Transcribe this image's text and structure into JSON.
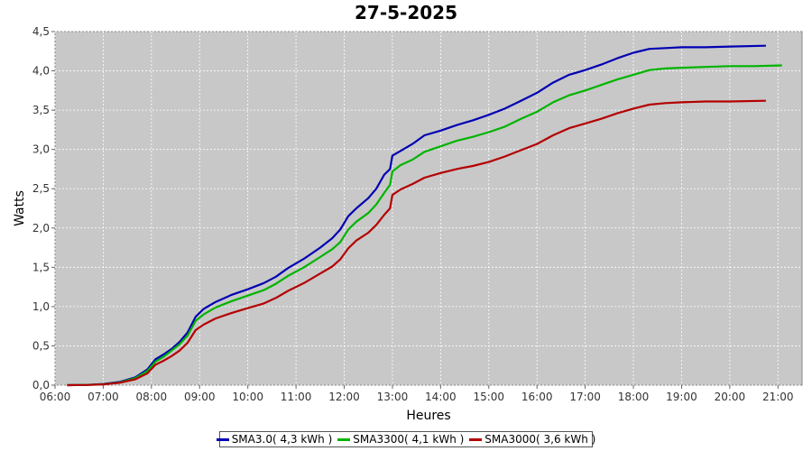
{
  "chart_data": {
    "type": "line",
    "title": "27-5-2025",
    "xlabel": "Heures",
    "ylabel": "Watts",
    "x_ticks": [
      "06:00",
      "07:00",
      "08:00",
      "09:00",
      "10:00",
      "11:00",
      "12:00",
      "13:00",
      "14:00",
      "15:00",
      "16:00",
      "17:00",
      "18:00",
      "19:00",
      "20:00",
      "21:00"
    ],
    "y_ticks": [
      "0,0",
      "0,5",
      "1,0",
      "1,5",
      "2,0",
      "2,5",
      "3,0",
      "3,5",
      "4,0",
      "4,5"
    ],
    "xlim": [
      "06:00",
      "21:30"
    ],
    "ylim": [
      0,
      4.5
    ],
    "grid": true,
    "background": "#c8c8c8",
    "legend_position": "bottom",
    "series": [
      {
        "name": "SMA3.0( 4,3 kWh )",
        "color": "#0000b4",
        "points": [
          [
            "06:15",
            0
          ],
          [
            "06:40",
            0.003
          ],
          [
            "07:00",
            0.015
          ],
          [
            "07:20",
            0.04
          ],
          [
            "07:40",
            0.1
          ],
          [
            "07:55",
            0.2
          ],
          [
            "08:05",
            0.33
          ],
          [
            "08:15",
            0.39
          ],
          [
            "08:25",
            0.46
          ],
          [
            "08:35",
            0.55
          ],
          [
            "08:45",
            0.67
          ],
          [
            "08:55",
            0.87
          ],
          [
            "09:05",
            0.97
          ],
          [
            "09:20",
            1.06
          ],
          [
            "09:40",
            1.15
          ],
          [
            "10:00",
            1.22
          ],
          [
            "10:20",
            1.3
          ],
          [
            "10:35",
            1.38
          ],
          [
            "10:50",
            1.49
          ],
          [
            "11:10",
            1.61
          ],
          [
            "11:30",
            1.75
          ],
          [
            "11:45",
            1.87
          ],
          [
            "11:55",
            1.98
          ],
          [
            "12:05",
            2.15
          ],
          [
            "12:15",
            2.25
          ],
          [
            "12:30",
            2.38
          ],
          [
            "12:40",
            2.5
          ],
          [
            "12:50",
            2.68
          ],
          [
            "12:57",
            2.75
          ],
          [
            "13:00",
            2.92
          ],
          [
            "13:10",
            2.98
          ],
          [
            "13:25",
            3.07
          ],
          [
            "13:40",
            3.18
          ],
          [
            "14:00",
            3.24
          ],
          [
            "14:20",
            3.31
          ],
          [
            "14:40",
            3.37
          ],
          [
            "15:00",
            3.44
          ],
          [
            "15:20",
            3.52
          ],
          [
            "15:40",
            3.62
          ],
          [
            "16:00",
            3.72
          ],
          [
            "16:20",
            3.85
          ],
          [
            "16:40",
            3.95
          ],
          [
            "17:00",
            4.01
          ],
          [
            "17:20",
            4.08
          ],
          [
            "17:40",
            4.16
          ],
          [
            "18:00",
            4.23
          ],
          [
            "18:20",
            4.28
          ],
          [
            "18:40",
            4.29
          ],
          [
            "19:00",
            4.3
          ],
          [
            "19:30",
            4.3
          ],
          [
            "20:00",
            4.31
          ],
          [
            "20:45",
            4.32
          ]
        ]
      },
      {
        "name": "SMA3300( 4,1 kWh )",
        "color": "#00b400",
        "points": [
          [
            "06:15",
            0
          ],
          [
            "06:40",
            0.003
          ],
          [
            "07:00",
            0.012
          ],
          [
            "07:20",
            0.035
          ],
          [
            "07:40",
            0.09
          ],
          [
            "07:55",
            0.18
          ],
          [
            "08:05",
            0.3
          ],
          [
            "08:15",
            0.36
          ],
          [
            "08:25",
            0.44
          ],
          [
            "08:35",
            0.52
          ],
          [
            "08:45",
            0.63
          ],
          [
            "08:55",
            0.82
          ],
          [
            "09:05",
            0.9
          ],
          [
            "09:20",
            0.99
          ],
          [
            "09:40",
            1.07
          ],
          [
            "10:00",
            1.14
          ],
          [
            "10:20",
            1.21
          ],
          [
            "10:35",
            1.29
          ],
          [
            "10:50",
            1.39
          ],
          [
            "11:10",
            1.5
          ],
          [
            "11:30",
            1.63
          ],
          [
            "11:45",
            1.73
          ],
          [
            "11:55",
            1.82
          ],
          [
            "12:05",
            1.98
          ],
          [
            "12:15",
            2.08
          ],
          [
            "12:30",
            2.19
          ],
          [
            "12:40",
            2.3
          ],
          [
            "12:50",
            2.45
          ],
          [
            "12:57",
            2.55
          ],
          [
            "13:00",
            2.72
          ],
          [
            "13:10",
            2.8
          ],
          [
            "13:25",
            2.87
          ],
          [
            "13:40",
            2.97
          ],
          [
            "14:00",
            3.04
          ],
          [
            "14:20",
            3.11
          ],
          [
            "14:40",
            3.16
          ],
          [
            "15:00",
            3.22
          ],
          [
            "15:20",
            3.29
          ],
          [
            "15:40",
            3.39
          ],
          [
            "16:00",
            3.48
          ],
          [
            "16:20",
            3.6
          ],
          [
            "16:40",
            3.69
          ],
          [
            "17:00",
            3.75
          ],
          [
            "17:20",
            3.82
          ],
          [
            "17:40",
            3.89
          ],
          [
            "18:00",
            3.95
          ],
          [
            "18:20",
            4.01
          ],
          [
            "18:40",
            4.03
          ],
          [
            "19:00",
            4.04
          ],
          [
            "19:30",
            4.05
          ],
          [
            "20:00",
            4.06
          ],
          [
            "20:30",
            4.06
          ],
          [
            "21:05",
            4.07
          ]
        ]
      },
      {
        "name": "SMA3000( 3,6 kWh )",
        "color": "#b40000",
        "points": [
          [
            "06:15",
            0
          ],
          [
            "06:40",
            0.002
          ],
          [
            "07:00",
            0.01
          ],
          [
            "07:20",
            0.03
          ],
          [
            "07:40",
            0.075
          ],
          [
            "07:55",
            0.15
          ],
          [
            "08:05",
            0.26
          ],
          [
            "08:15",
            0.31
          ],
          [
            "08:25",
            0.37
          ],
          [
            "08:35",
            0.44
          ],
          [
            "08:45",
            0.54
          ],
          [
            "08:55",
            0.7
          ],
          [
            "09:05",
            0.77
          ],
          [
            "09:20",
            0.85
          ],
          [
            "09:40",
            0.92
          ],
          [
            "10:00",
            0.98
          ],
          [
            "10:20",
            1.04
          ],
          [
            "10:35",
            1.11
          ],
          [
            "10:50",
            1.2
          ],
          [
            "11:10",
            1.3
          ],
          [
            "11:30",
            1.42
          ],
          [
            "11:45",
            1.51
          ],
          [
            "11:55",
            1.6
          ],
          [
            "12:05",
            1.74
          ],
          [
            "12:15",
            1.84
          ],
          [
            "12:30",
            1.94
          ],
          [
            "12:40",
            2.04
          ],
          [
            "12:50",
            2.17
          ],
          [
            "12:57",
            2.25
          ],
          [
            "13:00",
            2.42
          ],
          [
            "13:10",
            2.49
          ],
          [
            "13:25",
            2.56
          ],
          [
            "13:40",
            2.64
          ],
          [
            "14:00",
            2.7
          ],
          [
            "14:20",
            2.75
          ],
          [
            "14:40",
            2.79
          ],
          [
            "15:00",
            2.84
          ],
          [
            "15:20",
            2.91
          ],
          [
            "15:40",
            2.99
          ],
          [
            "16:00",
            3.07
          ],
          [
            "16:20",
            3.18
          ],
          [
            "16:40",
            3.27
          ],
          [
            "17:00",
            3.33
          ],
          [
            "17:20",
            3.39
          ],
          [
            "17:40",
            3.46
          ],
          [
            "18:00",
            3.52
          ],
          [
            "18:20",
            3.57
          ],
          [
            "18:40",
            3.59
          ],
          [
            "19:00",
            3.6
          ],
          [
            "19:30",
            3.61
          ],
          [
            "20:00",
            3.61
          ],
          [
            "20:45",
            3.62
          ]
        ]
      }
    ]
  }
}
